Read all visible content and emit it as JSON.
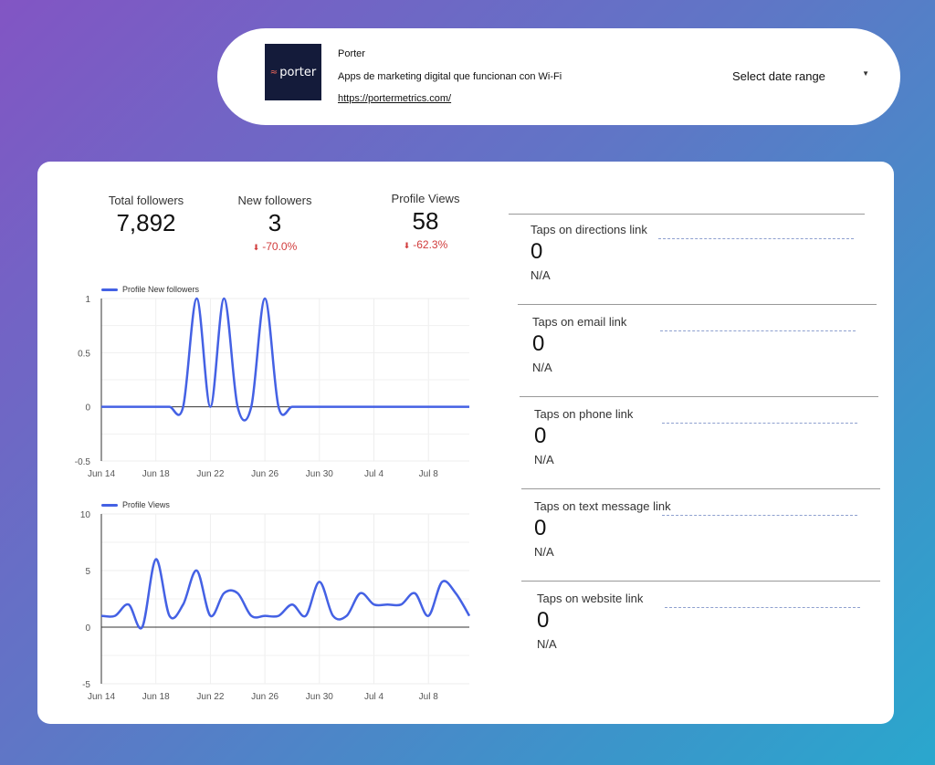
{
  "header": {
    "logo_text": "porter",
    "brand_name": "Porter",
    "description": "Apps de marketing digital que funcionan con Wi-Fi",
    "url": "https://portermetrics.com/",
    "date_range_label": "Select date range"
  },
  "kpis": [
    {
      "label": "Total followers",
      "value": "7,892",
      "delta": ""
    },
    {
      "label": "New followers",
      "value": "3",
      "delta": "-70.0%"
    },
    {
      "label": "Profile Views",
      "value": "58",
      "delta": "-62.3%"
    }
  ],
  "metrics": [
    {
      "label": "Taps on directions link",
      "value": "0",
      "sub": "N/A"
    },
    {
      "label": "Taps on email link",
      "value": "0",
      "sub": "N/A"
    },
    {
      "label": "Taps on phone link",
      "value": "0",
      "sub": "N/A"
    },
    {
      "label": "Taps on text message link",
      "value": "0",
      "sub": "N/A"
    },
    {
      "label": "Taps on website link",
      "value": "0",
      "sub": "N/A"
    }
  ],
  "colors": {
    "series": "#4461e4",
    "negative": "#d13c3c"
  },
  "chart_data": [
    {
      "type": "line",
      "legend": "Profile New followers",
      "x_ticks": [
        "Jun 14",
        "Jun 18",
        "Jun 22",
        "Jun 26",
        "Jun 30",
        "Jul 4",
        "Jul 8"
      ],
      "y_ticks": [
        "1",
        "0.5",
        "0",
        "-0.5"
      ],
      "ylim": [
        -0.5,
        1
      ],
      "x_start": "Jun 14",
      "x_end": "Jul 11",
      "series": [
        {
          "name": "Profile New followers",
          "values": [
            0,
            0,
            0,
            0,
            0,
            0,
            0,
            1,
            0,
            1,
            0,
            0,
            1,
            0,
            0,
            0,
            0,
            0,
            0,
            0,
            0,
            0,
            0,
            0,
            0,
            0,
            0,
            0
          ]
        }
      ]
    },
    {
      "type": "line",
      "legend": "Profile Views",
      "x_ticks": [
        "Jun 14",
        "Jun 18",
        "Jun 22",
        "Jun 26",
        "Jun 30",
        "Jul 4",
        "Jul 8"
      ],
      "y_ticks": [
        "10",
        "5",
        "0",
        "-5"
      ],
      "ylim": [
        -5,
        10
      ],
      "x_start": "Jun 14",
      "x_end": "Jul 11",
      "series": [
        {
          "name": "Profile Views",
          "values": [
            1,
            1,
            2,
            0,
            6,
            1,
            2,
            5,
            1,
            3,
            3,
            1,
            1,
            1,
            2,
            1,
            4,
            1,
            1,
            3,
            2,
            2,
            2,
            3,
            1,
            4,
            3,
            1
          ]
        }
      ]
    }
  ]
}
